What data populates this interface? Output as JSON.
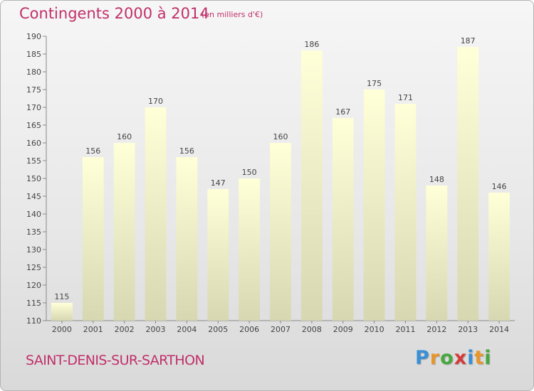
{
  "header": {
    "title": "Contingents 2000 à 2014",
    "subtitle": "(en milliers d'€)"
  },
  "footer": {
    "commune": "SAINT-DENIS-SUR-SARTHON",
    "logo_letters": [
      "P",
      "r",
      "o",
      "x",
      "i",
      "t",
      "i"
    ],
    "logo_colors": [
      "#3a8fd6",
      "#e8962b",
      "#46a83e",
      "#d63b3b",
      "#3a8fd6",
      "#e8962b",
      "#46a83e"
    ]
  },
  "colors": {
    "title": "#c0306a",
    "bar_top": "#ffffd8",
    "bar_bottom": "#d7d7b2",
    "label": "#444444"
  },
  "chart_data": {
    "type": "bar",
    "title": "Contingents 2000 à 2014",
    "subtitle": "(en milliers d'€)",
    "categories": [
      "2000",
      "2001",
      "2002",
      "2003",
      "2004",
      "2005",
      "2006",
      "2007",
      "2008",
      "2009",
      "2010",
      "2011",
      "2012",
      "2013",
      "2014"
    ],
    "values": [
      115,
      156,
      160,
      170,
      156,
      147,
      150,
      160,
      186,
      167,
      175,
      171,
      148,
      187,
      146
    ],
    "ylim": [
      110,
      190
    ],
    "yticks": [
      110,
      115,
      120,
      125,
      130,
      135,
      140,
      145,
      150,
      155,
      160,
      165,
      170,
      175,
      180,
      185,
      190
    ],
    "grid": false,
    "legend": "none",
    "data_labels": true
  }
}
